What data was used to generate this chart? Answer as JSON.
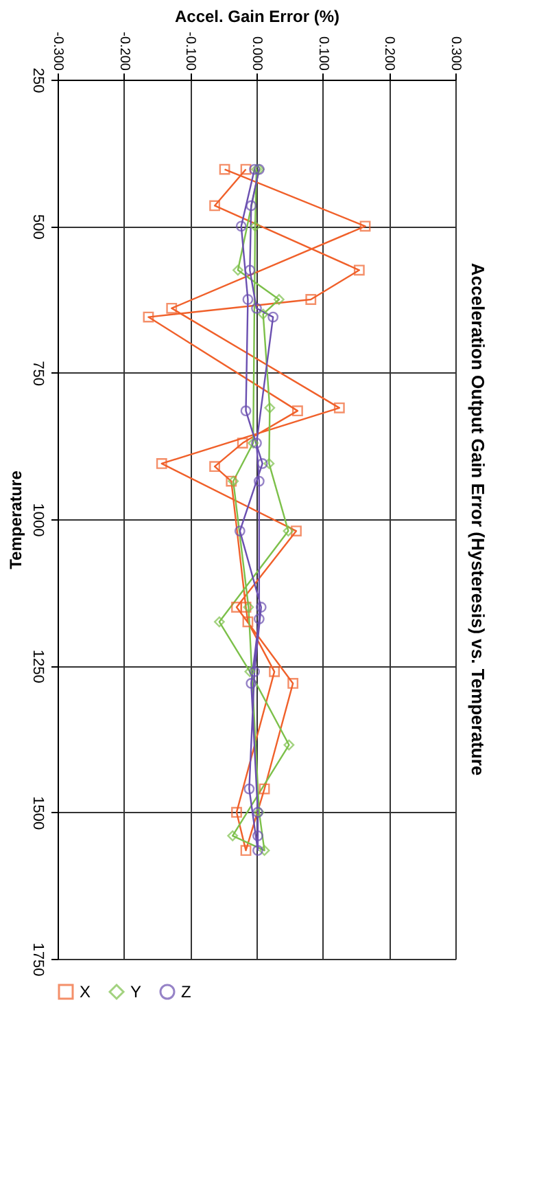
{
  "chart_data": {
    "type": "line",
    "title": "Acceleration Output Gain Error (Hysteresis) vs. Temperature",
    "xlabel": "Accel. Gain Error (%)",
    "ylabel": "Temperature",
    "xlim": [
      -0.3,
      0.3
    ],
    "xticks": [
      {
        "value": -0.3,
        "label": "-0.300"
      },
      {
        "value": -0.2,
        "label": "-0.200"
      },
      {
        "value": -0.1,
        "label": "-0.100"
      },
      {
        "value": 0,
        "label": "0.000"
      },
      {
        "value": 0.1,
        "label": "0.100"
      },
      {
        "value": 0.2,
        "label": "0.200"
      },
      {
        "value": 0.3,
        "label": "0.300"
      }
    ],
    "ylim": [
      1750,
      250
    ],
    "yticks": [
      250,
      500,
      750,
      1000,
      1250,
      1500,
      1750
    ],
    "grid": true,
    "legend": "bottom",
    "line_style": "solid",
    "series": [
      {
        "name": "X",
        "color": "#f0602a",
        "marker": "square",
        "values": [
          403,
          500,
          640,
          810,
          905,
          1020,
          1150,
          1280,
          1460,
          1565,
          1500,
          1260,
          1175,
          1150,
          935,
          910,
          870,
          815,
          655,
          625,
          575,
          465,
          403
        ],
        "x": [
          -0.048,
          0.164,
          -0.128,
          0.125,
          -0.143,
          0.06,
          -0.03,
          0.055,
          0.012,
          -0.016,
          -0.03,
          0.027,
          -0.013,
          -0.016,
          -0.038,
          -0.063,
          -0.021,
          0.062,
          -0.163,
          0.082,
          0.155,
          -0.063,
          -0.016
        ]
      },
      {
        "name": "Y",
        "color": "#7cc04a",
        "marker": "diamond",
        "values": [
          403,
          575,
          625,
          650,
          810,
          905,
          1020,
          1175,
          1260,
          1385,
          1540,
          1565,
          1500,
          1150,
          935,
          870,
          500,
          403
        ],
        "x": [
          0.004,
          -0.028,
          0.034,
          0.01,
          0.02,
          0.019,
          0.048,
          -0.056,
          -0.01,
          0.049,
          -0.036,
          0.012,
          0.004,
          -0.012,
          -0.035,
          -0.005,
          -0.002,
          0.0
        ]
      },
      {
        "name": "Z",
        "color": "#6a4fb0",
        "marker": "circle",
        "values": [
          403,
          500,
          625,
          815,
          905,
          1020,
          1150,
          1260,
          1460,
          1565,
          1540,
          1500,
          1280,
          1170,
          935,
          870,
          655,
          640,
          575,
          465,
          403
        ],
        "x": [
          -0.003,
          -0.023,
          -0.013,
          -0.016,
          0.009,
          -0.025,
          0.007,
          -0.003,
          -0.011,
          0.002,
          0.002,
          0.002,
          -0.008,
          0.004,
          0.004,
          0.0,
          0.025,
          0.0,
          -0.01,
          -0.008,
          0.004
        ]
      }
    ]
  }
}
